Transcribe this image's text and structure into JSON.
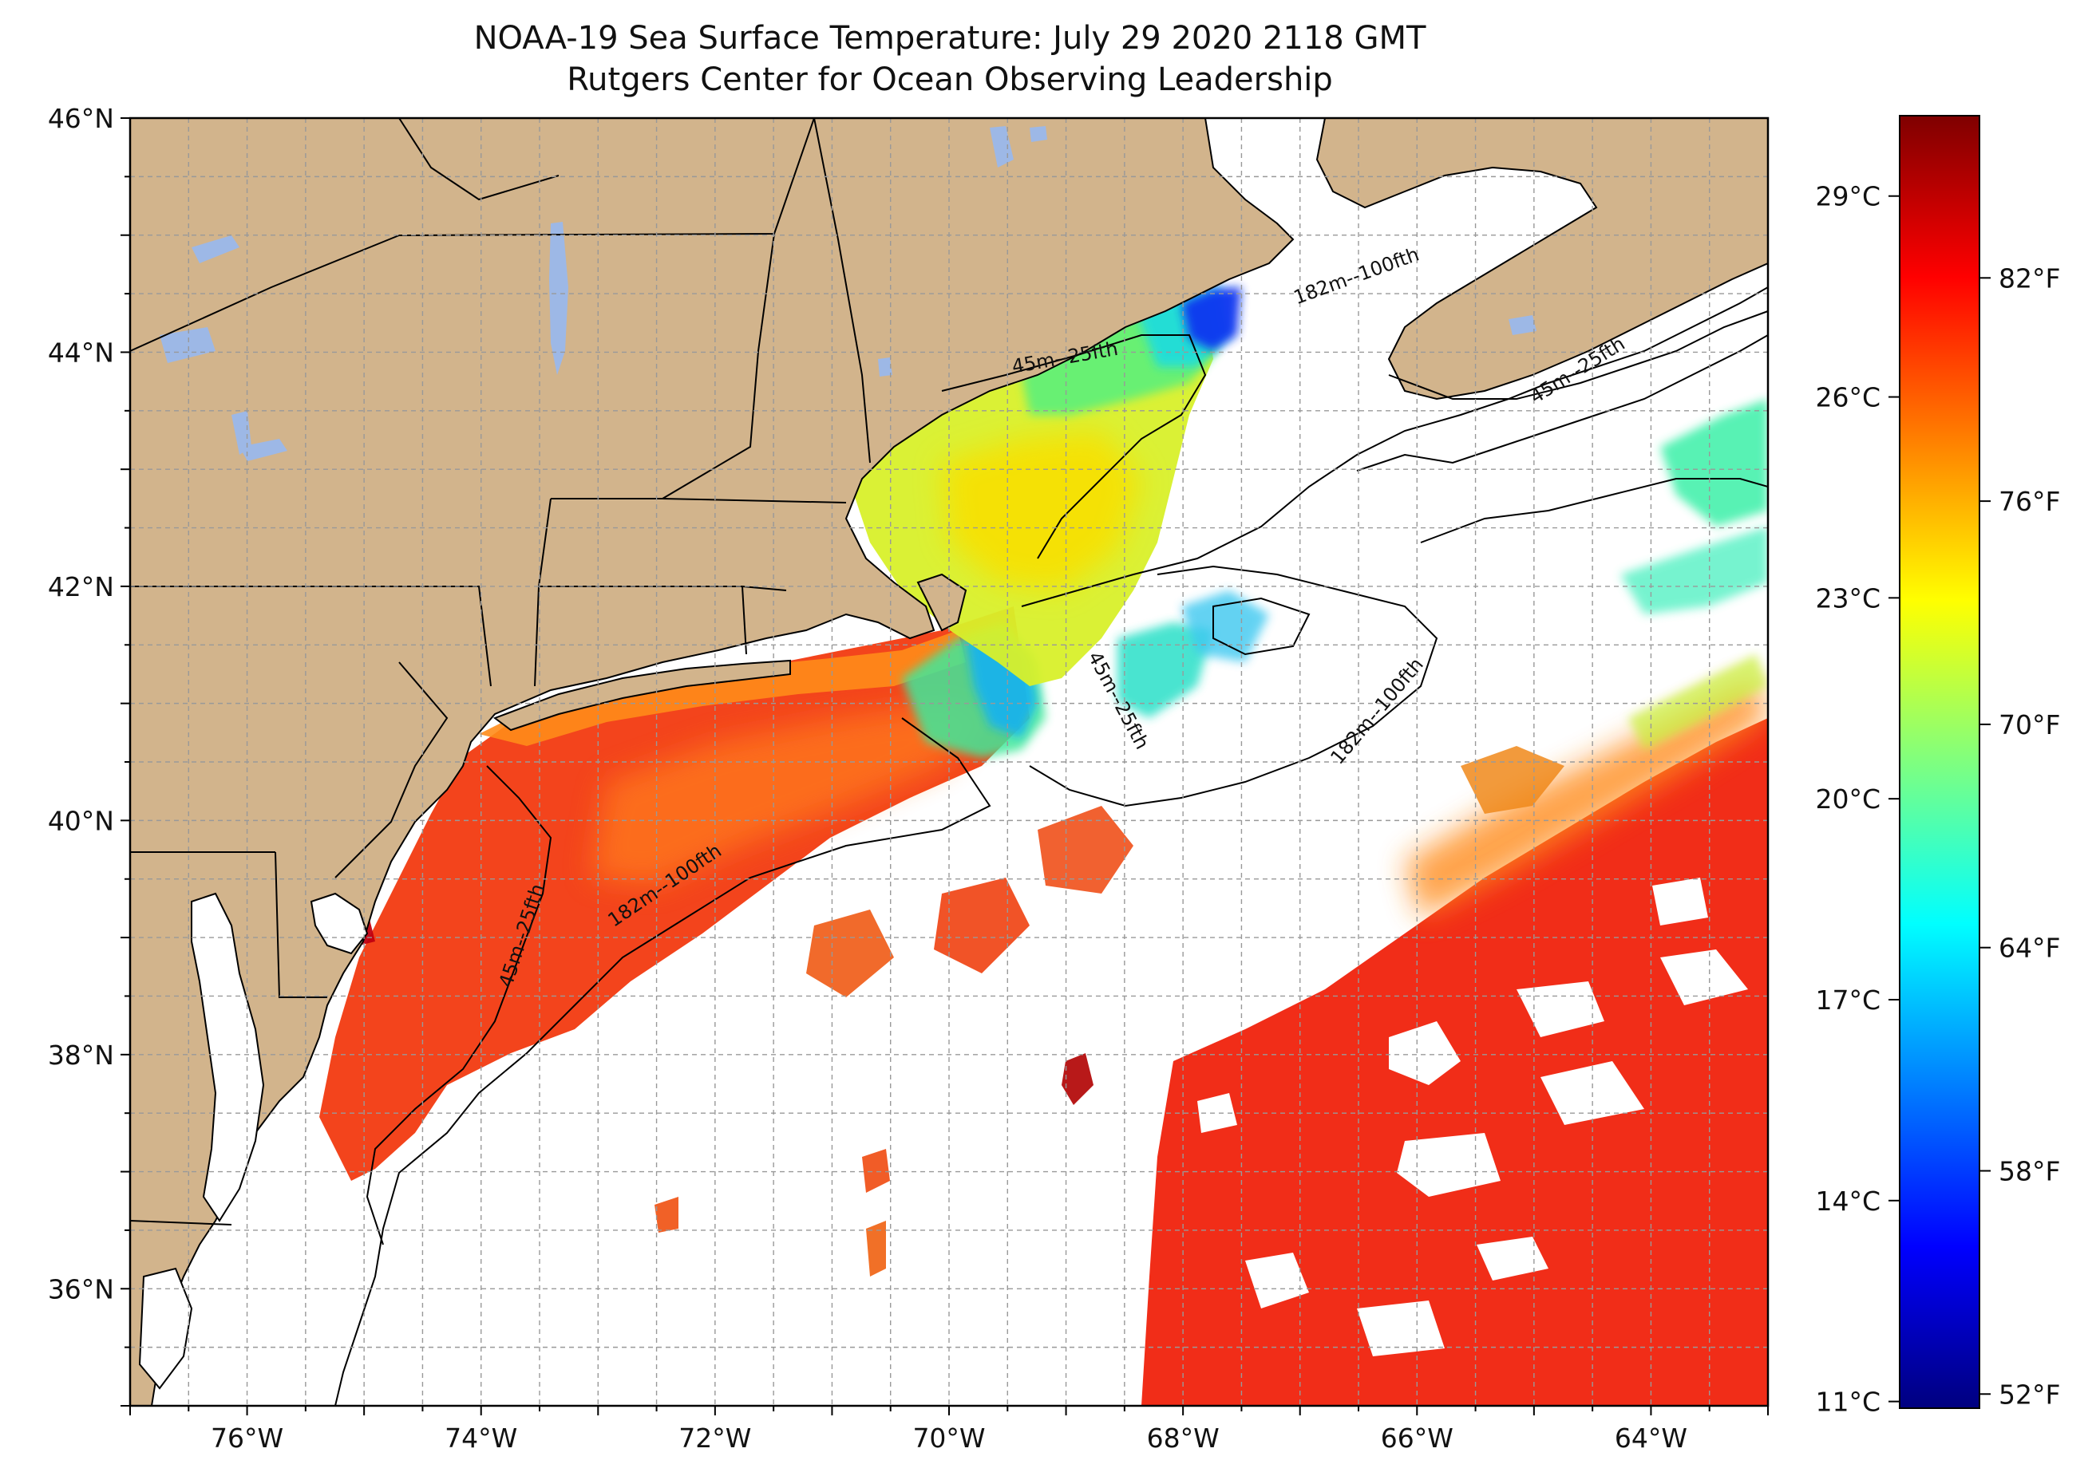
{
  "title": {
    "line1": "NOAA-19 Sea Surface Temperature: July 29 2020 2118 GMT",
    "line2": "Rutgers Center for Ocean Observing Leadership"
  },
  "map": {
    "extent": {
      "lon_min": -77,
      "lon_max": -63,
      "lat_min": 35,
      "lat_max": 46
    },
    "land_color": "#D2B48C",
    "lake_color": "#9DB8E6",
    "grid": true,
    "lon_ticks": [
      {
        "value": -76,
        "label": "76°W"
      },
      {
        "value": -74,
        "label": "74°W"
      },
      {
        "value": -72,
        "label": "72°W"
      },
      {
        "value": -70,
        "label": "70°W"
      },
      {
        "value": -68,
        "label": "68°W"
      },
      {
        "value": -66,
        "label": "66°W"
      },
      {
        "value": -64,
        "label": "64°W"
      }
    ],
    "lat_ticks": [
      {
        "value": 46,
        "label": "46°N"
      },
      {
        "value": 44,
        "label": "44°N"
      },
      {
        "value": 42,
        "label": "42°N"
      },
      {
        "value": 40,
        "label": "40°N"
      },
      {
        "value": 38,
        "label": "38°N"
      },
      {
        "value": 36,
        "label": "36°N"
      }
    ],
    "contour_labels": [
      {
        "text": "45m--25fth",
        "lon": -73.6,
        "lat": 39.0,
        "rotate": -72
      },
      {
        "text": "182m--100fth",
        "lon": -72.4,
        "lat": 39.4,
        "rotate": -34
      },
      {
        "text": "45m--25fth",
        "lon": -69.0,
        "lat": 43.9,
        "rotate": -10
      },
      {
        "text": "182m--100fth",
        "lon": -66.5,
        "lat": 44.6,
        "rotate": -20
      },
      {
        "text": "45m--25fth",
        "lon": -64.6,
        "lat": 43.8,
        "rotate": -32
      },
      {
        "text": "45m--25fth",
        "lon": -68.6,
        "lat": 41.0,
        "rotate": 62
      },
      {
        "text": "182m--100fth",
        "lon": -66.3,
        "lat": 40.9,
        "rotate": -50
      }
    ]
  },
  "colorbar": {
    "celsius_ticks": [
      {
        "value": 29,
        "label": "29°C"
      },
      {
        "value": 26,
        "label": "26°C"
      },
      {
        "value": 23,
        "label": "23°C"
      },
      {
        "value": 20,
        "label": "20°C"
      },
      {
        "value": 17,
        "label": "17°C"
      },
      {
        "value": 14,
        "label": "14°C"
      },
      {
        "value": 11,
        "label": "11°C"
      }
    ],
    "fahrenheit_ticks": [
      {
        "value": 82,
        "label": "82°F"
      },
      {
        "value": 76,
        "label": "76°F"
      },
      {
        "value": 70,
        "label": "70°F"
      },
      {
        "value": 64,
        "label": "64°F"
      },
      {
        "value": 58,
        "label": "58°F"
      },
      {
        "value": 52,
        "label": "52°F"
      }
    ],
    "range_c": [
      10.9,
      30.2
    ],
    "colormap_colors": [
      "#00007F",
      "#0000FF",
      "#007FFF",
      "#00FFFF",
      "#7FFF7F",
      "#FFFF00",
      "#FF7F00",
      "#FF0000",
      "#7F0000"
    ]
  }
}
